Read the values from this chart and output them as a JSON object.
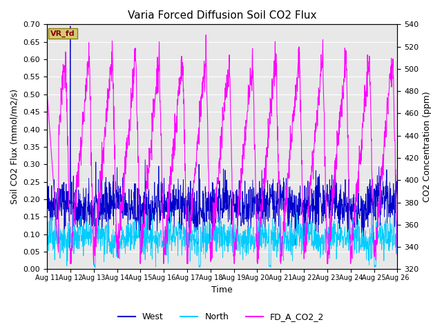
{
  "title": "Varia Forced Diffusion Soil CO2 Flux",
  "xlabel": "Time",
  "ylabel_left": "Soil CO2 Flux (mmol/m2/s)",
  "ylabel_right": "CO2 Concentration (ppm)",
  "ylim_left": [
    0.0,
    0.7
  ],
  "ylim_right": [
    320,
    540
  ],
  "yticks_left": [
    0.0,
    0.05,
    0.1,
    0.15,
    0.2,
    0.25,
    0.3,
    0.35,
    0.4,
    0.45,
    0.5,
    0.55,
    0.6,
    0.65,
    0.7
  ],
  "yticks_right": [
    320,
    340,
    360,
    380,
    400,
    420,
    440,
    460,
    480,
    500,
    520,
    540
  ],
  "color_west": "#0000cc",
  "color_north": "#00ccff",
  "color_co2": "#ff00ff",
  "legend_labels": [
    "West",
    "North",
    "FD_A_CO2_2"
  ],
  "annotation_text": "VR_fd",
  "annotation_color": "#8b0000",
  "annotation_bg": "#d4c97a",
  "n_points": 1500,
  "bg_color": "#e8e8e8",
  "grid_color": "#ffffff",
  "figsize": [
    6.4,
    4.8
  ],
  "dpi": 100
}
